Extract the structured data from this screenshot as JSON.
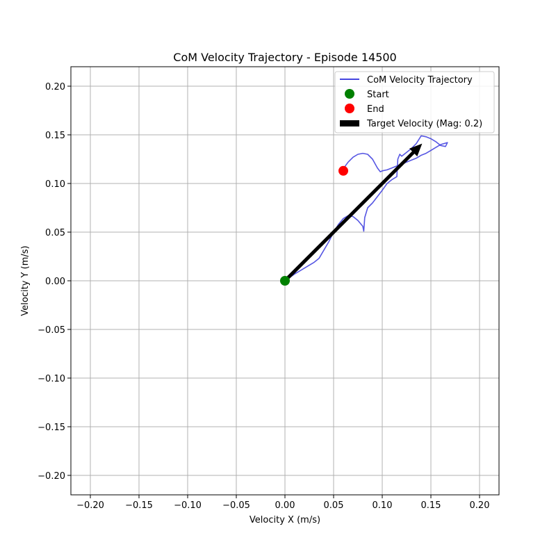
{
  "chart_data": {
    "type": "line",
    "title": "CoM Velocity Trajectory - Episode 14500",
    "xlabel": "Velocity X (m/s)",
    "ylabel": "Velocity Y (m/s)",
    "xlim": [
      -0.22,
      0.22
    ],
    "ylim": [
      -0.22,
      0.22
    ],
    "grid": true,
    "legend_position": "top-right",
    "x_ticks": [
      "−0.20",
      "−0.15",
      "−0.10",
      "−0.05",
      "0.00",
      "0.05",
      "0.10",
      "0.15",
      "0.20"
    ],
    "y_ticks": [
      "−0.20",
      "−0.15",
      "−0.10",
      "−0.05",
      "0.00",
      "0.05",
      "0.10",
      "0.15",
      "0.20"
    ],
    "x_tick_values": [
      -0.2,
      -0.15,
      -0.1,
      -0.05,
      0.0,
      0.05,
      0.1,
      0.15,
      0.2
    ],
    "y_tick_values": [
      -0.2,
      -0.15,
      -0.1,
      -0.05,
      0.0,
      0.05,
      0.1,
      0.15,
      0.2
    ],
    "series": [
      {
        "name": "CoM Velocity Trajectory",
        "color": "#4444e0",
        "x": [
          0.0,
          0.01,
          0.02,
          0.03,
          0.035,
          0.045,
          0.05,
          0.055,
          0.06,
          0.065,
          0.07,
          0.075,
          0.08,
          0.081,
          0.082,
          0.085,
          0.09,
          0.1,
          0.105,
          0.11,
          0.115,
          0.116,
          0.118,
          0.12,
          0.125,
          0.13,
          0.135,
          0.14,
          0.145,
          0.15,
          0.155,
          0.16,
          0.165,
          0.167,
          0.16,
          0.155,
          0.15,
          0.145,
          0.14,
          0.135,
          0.13,
          0.125,
          0.12,
          0.115,
          0.11,
          0.105,
          0.1,
          0.098,
          0.095,
          0.09,
          0.085,
          0.08,
          0.075,
          0.07,
          0.065,
          0.062,
          0.06
        ],
        "y": [
          0.0,
          0.007,
          0.013,
          0.019,
          0.023,
          0.04,
          0.05,
          0.058,
          0.064,
          0.067,
          0.066,
          0.062,
          0.056,
          0.051,
          0.065,
          0.075,
          0.08,
          0.093,
          0.1,
          0.104,
          0.107,
          0.125,
          0.13,
          0.128,
          0.132,
          0.136,
          0.141,
          0.149,
          0.148,
          0.146,
          0.143,
          0.139,
          0.138,
          0.142,
          0.14,
          0.137,
          0.134,
          0.131,
          0.129,
          0.126,
          0.124,
          0.122,
          0.12,
          0.118,
          0.116,
          0.114,
          0.113,
          0.112,
          0.116,
          0.125,
          0.13,
          0.131,
          0.13,
          0.127,
          0.122,
          0.118,
          0.113
        ]
      }
    ],
    "start": {
      "label": "Start",
      "x": 0.0,
      "y": 0.0,
      "color": "#008000"
    },
    "end": {
      "label": "End",
      "x": 0.06,
      "y": 0.113,
      "color": "#ff0000"
    },
    "target": {
      "label": "Target Velocity (Mag: 0.2)",
      "from": [
        0.0,
        0.0
      ],
      "to": [
        0.141,
        0.141
      ],
      "color": "#000000"
    }
  }
}
